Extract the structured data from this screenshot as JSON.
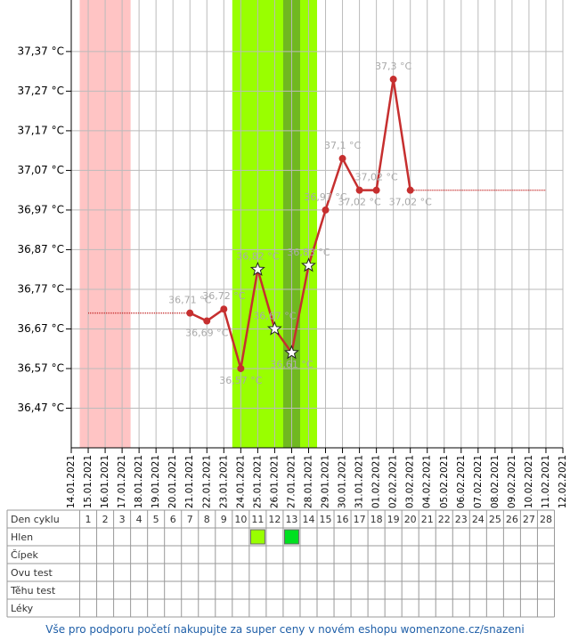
{
  "chart_data": {
    "type": "line",
    "categories": [
      "14.01.2021",
      "15.01.2021",
      "16.01.2021",
      "17.01.2021",
      "18.01.2021",
      "19.01.2021",
      "20.01.2021",
      "21.01.2021",
      "22.01.2021",
      "23.01.2021",
      "24.01.2021",
      "25.01.2021",
      "26.01.2021",
      "27.01.2021",
      "28.01.2021",
      "29.01.2021",
      "30.01.2021",
      "31.01.2021",
      "01.02.2021",
      "02.02.2021",
      "03.02.2021",
      "04.02.2021",
      "05.02.2021",
      "06.02.2021",
      "07.02.2021",
      "08.02.2021",
      "09.02.2021",
      "10.02.2021",
      "11.02.2021",
      "12.02.2021"
    ],
    "values": [
      null,
      null,
      null,
      null,
      null,
      null,
      null,
      36.71,
      36.69,
      36.72,
      36.57,
      36.82,
      36.67,
      36.61,
      36.83,
      36.97,
      37.1,
      37.02,
      37.02,
      37.3,
      37.02,
      null,
      null,
      null,
      null,
      null,
      null,
      null,
      null,
      null
    ],
    "value_labels": [
      null,
      null,
      null,
      null,
      null,
      null,
      null,
      "36,71 °C",
      "36,69 °C",
      "36,72 °C",
      "36,57 °C",
      "36,82 °C",
      "36,67 °C",
      "36,61 °C",
      "36,83 °C",
      "36,97 °C",
      "37,1 °C",
      "37,02 °C",
      "37,02 °C",
      "37,3 °C",
      "37,02 °C",
      null,
      null,
      null,
      null,
      null,
      null,
      null,
      null,
      null
    ],
    "star_points": [
      "25.01.2021",
      "26.01.2021",
      "27.01.2021",
      "28.01.2021"
    ],
    "color": "#c62f2f",
    "coverlines": [
      {
        "from": "15.01.2021",
        "to": "21.01.2021",
        "value": 36.71
      },
      {
        "from": "03.02.2021",
        "to": "11.02.2021",
        "value": 37.02
      }
    ],
    "bands": [
      {
        "from": "15.01.2021",
        "to": "17.01.2021",
        "color": "#ffc4c4"
      },
      {
        "from": "24.01.2021",
        "to": "28.01.2021",
        "color": "#99ff00"
      },
      {
        "from": "27.01.2021",
        "to": "27.01.2021",
        "color": "#70b820"
      }
    ],
    "ylim": [
      36.37,
      37.5
    ],
    "yticks": [
      {
        "value": 36.47,
        "label": "36,47 °C"
      },
      {
        "value": 36.57,
        "label": "36,57 °C"
      },
      {
        "value": 36.67,
        "label": "36,67 °C"
      },
      {
        "value": 36.77,
        "label": "36,77 °C"
      },
      {
        "value": 36.87,
        "label": "36,87 °C"
      },
      {
        "value": 36.97,
        "label": "36,97 °C"
      },
      {
        "value": 37.07,
        "label": "37,07 °C"
      },
      {
        "value": 37.17,
        "label": "37,17 °C"
      },
      {
        "value": 37.27,
        "label": "37,27 °C"
      },
      {
        "value": 37.37,
        "label": "37,37 °C"
      }
    ],
    "grid": true
  },
  "table": {
    "row_labels": [
      "Den cyklu",
      "Hlen",
      "Čípek",
      "Ovu test",
      "Těhu test",
      "Léky"
    ],
    "cycle_days": [
      1,
      2,
      3,
      4,
      5,
      6,
      7,
      8,
      9,
      10,
      11,
      12,
      13,
      14,
      15,
      16,
      17,
      18,
      19,
      20,
      21,
      22,
      23,
      24,
      25,
      26,
      27,
      28
    ],
    "mucus_marks": [
      {
        "day": 11,
        "color": "#99ff00"
      },
      {
        "day": 13,
        "color": "#00e020"
      }
    ]
  },
  "footer": "Vše pro podporu početí nakupujte za super ceny v novém eshopu womenzone.cz/snazeni"
}
